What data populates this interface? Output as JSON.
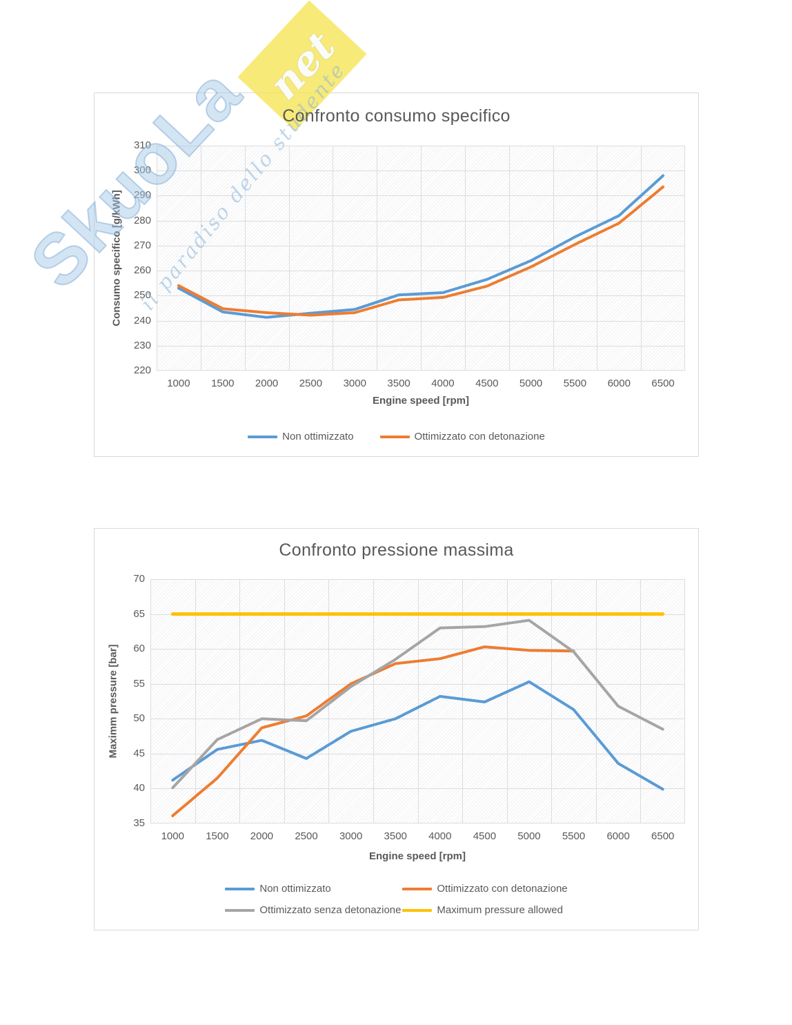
{
  "watermark": {
    "brand": "SkuoLa",
    "suffix": "net",
    "tagline": "il paradiso dello studente",
    "brand_color": "#9ec4e6",
    "box_color": "#f6e55c"
  },
  "chart_data": [
    {
      "type": "line",
      "title": "Confronto consumo specifico",
      "xlabel": "Engine speed [rpm]",
      "ylabel": "Consumo specifico [g/kWh]",
      "ylim": [
        220,
        310
      ],
      "y_ticks": [
        310,
        300,
        290,
        280,
        270,
        260,
        250,
        240,
        230,
        220
      ],
      "categories": [
        1000,
        1500,
        2000,
        2500,
        3000,
        3500,
        4000,
        4500,
        5000,
        5500,
        6000,
        6500
      ],
      "grid": true,
      "legend_position": "bottom",
      "gridline_color": "#dcdcdc",
      "series": [
        {
          "name": "Non ottimizzato",
          "color": "#5B9BD5",
          "line_width": 4,
          "values": [
            253,
            243.5,
            241.3,
            243,
            244.5,
            250.3,
            251.2,
            256.5,
            264,
            273.5,
            282,
            298
          ]
        },
        {
          "name": "Ottimizzato con detonazione",
          "color": "#ED7D31",
          "line_width": 4,
          "values": [
            254,
            244.8,
            243.2,
            242.2,
            243.2,
            248.3,
            249.3,
            253.8,
            261.5,
            270.5,
            279,
            293.5
          ]
        }
      ]
    },
    {
      "type": "line",
      "title": "Confronto pressione massima",
      "xlabel": "Engine speed [rpm]",
      "ylabel": "Maximm pressure [bar]",
      "ylim": [
        35,
        70
      ],
      "y_ticks": [
        70,
        65,
        60,
        55,
        50,
        45,
        40,
        35
      ],
      "categories": [
        1000,
        1500,
        2000,
        2500,
        3000,
        3500,
        4000,
        4500,
        5000,
        5500,
        6000,
        6500
      ],
      "grid": true,
      "legend_position": "bottom",
      "gridline_color": "#dcdcdc",
      "series": [
        {
          "name": "Non ottimizzato",
          "color": "#5B9BD5",
          "line_width": 4,
          "values": [
            41.2,
            45.6,
            46.9,
            44.3,
            48.2,
            50,
            53.2,
            52.4,
            55.3,
            51.3,
            43.6,
            39.9
          ]
        },
        {
          "name": "Ottimizzato con detonazione",
          "color": "#ED7D31",
          "line_width": 4,
          "values": [
            36.1,
            41.5,
            48.7,
            50.4,
            55,
            57.9,
            58.6,
            60.3,
            59.8,
            59.7,
            null,
            null
          ]
        },
        {
          "name": "Ottimizzato senza detonazione",
          "color": "#A5A5A5",
          "line_width": 4,
          "values": [
            40.1,
            47,
            50,
            49.7,
            54.6,
            58.5,
            63,
            63.2,
            64.1,
            59.6,
            51.8,
            48.5
          ]
        },
        {
          "name": "Maximum pressure allowed",
          "color": "#FFC000",
          "line_width": 5,
          "values": [
            65,
            65,
            65,
            65,
            65,
            65,
            65,
            65,
            65,
            65,
            65,
            65
          ]
        }
      ]
    }
  ]
}
